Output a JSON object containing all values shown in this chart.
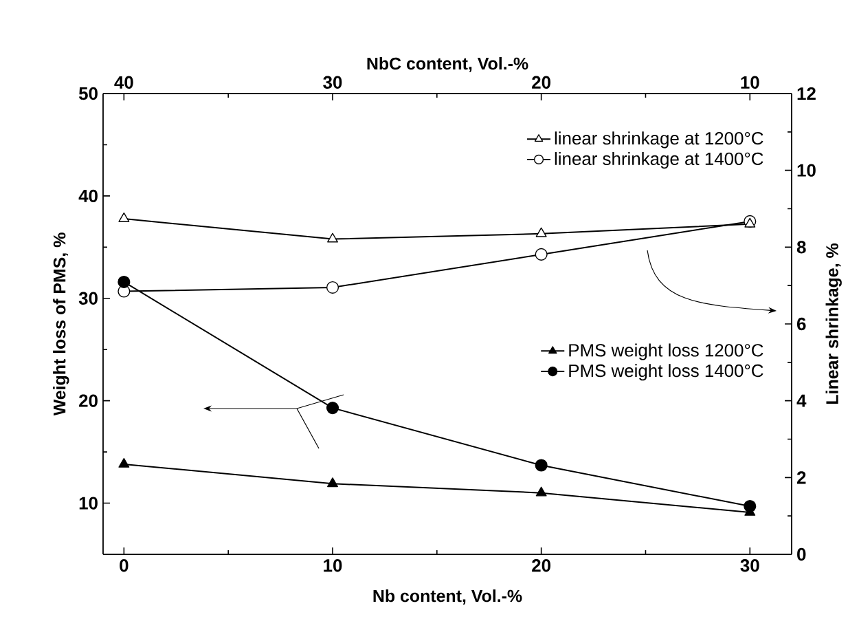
{
  "chart_data": {
    "type": "line",
    "xlabel": "Nb content, Vol.-%",
    "ylabel": "Weight loss of PMS, %",
    "y2label": "Linear shrinkage, %",
    "x2label": "NbC content, Vol.-%",
    "x": [
      0,
      10,
      20,
      30
    ],
    "xlim": [
      -1,
      32
    ],
    "xticks": [
      0,
      10,
      20,
      30
    ],
    "x2lim": [
      41,
      8
    ],
    "x2ticks": [
      40,
      30,
      20,
      10
    ],
    "ylim": [
      5,
      50
    ],
    "yticks": [
      10,
      20,
      30,
      40,
      50
    ],
    "y2lim": [
      0,
      12
    ],
    "y2ticks": [
      0,
      2,
      4,
      6,
      8,
      10,
      12
    ],
    "legend": "top right",
    "line_style": "solid",
    "series": [
      {
        "name": "linear shrinkage at 1200°C",
        "color": "#000000",
        "axis": "y2",
        "marker": "triangle",
        "values": [
          8.74,
          8.21,
          8.35,
          8.6
        ]
      },
      {
        "name": "linear shrinkage at 1400°C",
        "color": "#000000",
        "axis": "y2",
        "marker": "circle",
        "values": [
          6.85,
          6.95,
          7.81,
          8.67
        ]
      },
      {
        "name": "PMS weight loss 1200°C",
        "color": "#000000",
        "axis": "y",
        "marker": "triangle",
        "values": [
          13.8,
          11.9,
          11.0,
          9.1
        ]
      },
      {
        "name": "PMS weight loss 1400°C",
        "color": "#000000",
        "axis": "y",
        "marker": "circle",
        "values": [
          31.6,
          19.3,
          13.7,
          9.7
        ]
      }
    ]
  }
}
